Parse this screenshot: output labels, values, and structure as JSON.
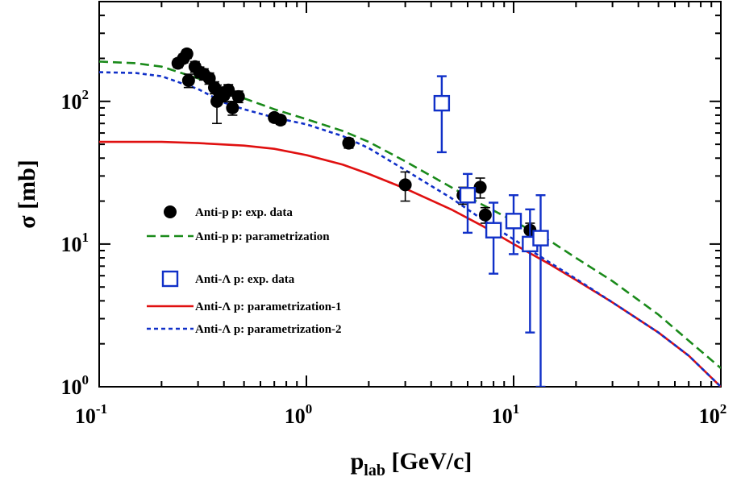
{
  "chart_data": {
    "type": "scatter",
    "xscale": "log",
    "yscale": "log",
    "xlim": [
      0.1,
      100
    ],
    "ylim": [
      1,
      500
    ],
    "xlabel_main": "p",
    "xlabel_sub": "lab",
    "xlabel_unit": " [GeV/c]",
    "ylabel": "σ [mb]",
    "x_ticks": [
      {
        "value": 0.1,
        "base": "10",
        "exp": "-1"
      },
      {
        "value": 1,
        "base": "10",
        "exp": "0"
      },
      {
        "value": 10,
        "base": "10",
        "exp": "1"
      },
      {
        "value": 100,
        "base": "10",
        "exp": "2"
      }
    ],
    "y_ticks": [
      {
        "value": 1,
        "base": "10",
        "exp": "0"
      },
      {
        "value": 10,
        "base": "10",
        "exp": "1"
      },
      {
        "value": 100,
        "base": "10",
        "exp": "2"
      }
    ],
    "legend_placement": "center-left",
    "series": [
      {
        "name": "Anti-p p:  exp. data",
        "kind": "points",
        "marker": "filled-circle",
        "color": "#000000",
        "points": [
          {
            "x": 0.24,
            "y": 185,
            "lo": 172,
            "hi": 198
          },
          {
            "x": 0.255,
            "y": 200,
            "lo": 186,
            "hi": 214
          },
          {
            "x": 0.265,
            "y": 215,
            "lo": 200,
            "hi": 230
          },
          {
            "x": 0.27,
            "y": 140,
            "lo": 125,
            "hi": 155
          },
          {
            "x": 0.29,
            "y": 175,
            "lo": 160,
            "hi": 190
          },
          {
            "x": 0.305,
            "y": 160,
            "lo": 146,
            "hi": 174
          },
          {
            "x": 0.32,
            "y": 155,
            "lo": 141,
            "hi": 169
          },
          {
            "x": 0.34,
            "y": 145,
            "lo": 132,
            "hi": 158
          },
          {
            "x": 0.36,
            "y": 125,
            "lo": 113,
            "hi": 137
          },
          {
            "x": 0.37,
            "y": 100,
            "lo": 70,
            "hi": 130
          },
          {
            "x": 0.38,
            "y": 115,
            "lo": 104,
            "hi": 126
          },
          {
            "x": 0.4,
            "y": 110,
            "lo": 99,
            "hi": 121
          },
          {
            "x": 0.42,
            "y": 120,
            "lo": 109,
            "hi": 131
          },
          {
            "x": 0.44,
            "y": 90,
            "lo": 80,
            "hi": 100
          },
          {
            "x": 0.47,
            "y": 108,
            "lo": 98,
            "hi": 118
          },
          {
            "x": 0.7,
            "y": 77,
            "lo": 72,
            "hi": 82
          },
          {
            "x": 0.75,
            "y": 74,
            "lo": 69,
            "hi": 79
          },
          {
            "x": 1.6,
            "y": 51,
            "lo": 47,
            "hi": 55
          },
          {
            "x": 3.0,
            "y": 26,
            "lo": 20,
            "hi": 32
          },
          {
            "x": 5.7,
            "y": 22,
            "lo": 19,
            "hi": 25
          },
          {
            "x": 6.9,
            "y": 25,
            "lo": 21,
            "hi": 29
          },
          {
            "x": 7.3,
            "y": 16,
            "lo": 14,
            "hi": 18
          },
          {
            "x": 12.0,
            "y": 12.5,
            "lo": 11,
            "hi": 14
          }
        ]
      },
      {
        "name": "Anti-p p:  parametrization",
        "kind": "line",
        "dash": "long",
        "color": "#1a8a1a",
        "points": [
          [
            0.1,
            190
          ],
          [
            0.15,
            185
          ],
          [
            0.2,
            175
          ],
          [
            0.3,
            145
          ],
          [
            0.5,
            105
          ],
          [
            0.7,
            88
          ],
          [
            1,
            75
          ],
          [
            1.5,
            62
          ],
          [
            2,
            52
          ],
          [
            3,
            38
          ],
          [
            5,
            25
          ],
          [
            7,
            19
          ],
          [
            10,
            14.5
          ],
          [
            15,
            10.5
          ],
          [
            20,
            8
          ],
          [
            30,
            5.5
          ],
          [
            50,
            3.2
          ],
          [
            70,
            2.1
          ],
          [
            100,
            1.35
          ]
        ]
      },
      {
        "name": "Anti-Λ p: exp. data",
        "kind": "points",
        "marker": "open-square",
        "color": "#1030c8",
        "points": [
          {
            "x": 4.5,
            "y": 97,
            "lo": 44,
            "hi": 150
          },
          {
            "x": 6.0,
            "y": 22,
            "lo": 12,
            "hi": 31
          },
          {
            "x": 8.0,
            "y": 12.5,
            "lo": 6.2,
            "hi": 19.5
          },
          {
            "x": 10.0,
            "y": 14.5,
            "lo": 8.5,
            "hi": 22
          },
          {
            "x": 12.0,
            "y": 10,
            "lo": 2.4,
            "hi": 17.5
          },
          {
            "x": 13.5,
            "y": 11,
            "lo": 1.0,
            "hi": 22
          }
        ]
      },
      {
        "name": "Anti-Λ p:  parametrization-1",
        "kind": "line",
        "dash": "solid",
        "color": "#e01010",
        "points": [
          [
            0.1,
            52
          ],
          [
            0.2,
            52
          ],
          [
            0.3,
            51
          ],
          [
            0.5,
            49
          ],
          [
            0.7,
            46.5
          ],
          [
            1,
            42
          ],
          [
            1.5,
            36
          ],
          [
            2,
            31
          ],
          [
            3,
            24.5
          ],
          [
            5,
            17.5
          ],
          [
            7,
            13.5
          ],
          [
            10,
            10
          ],
          [
            15,
            7.2
          ],
          [
            20,
            5.6
          ],
          [
            30,
            3.9
          ],
          [
            50,
            2.4
          ],
          [
            70,
            1.65
          ],
          [
            100,
            1.0
          ]
        ]
      },
      {
        "name": "Anti-Λ p:  parametrization-2",
        "kind": "line",
        "dash": "short",
        "color": "#1030c8",
        "points": [
          [
            0.1,
            160
          ],
          [
            0.15,
            158
          ],
          [
            0.2,
            150
          ],
          [
            0.3,
            122
          ],
          [
            0.4,
            98
          ],
          [
            0.5,
            88
          ],
          [
            0.7,
            77
          ],
          [
            1,
            69
          ],
          [
            1.5,
            57
          ],
          [
            2,
            47
          ],
          [
            3,
            33
          ],
          [
            5,
            21
          ],
          [
            7,
            15
          ],
          [
            10,
            10.8
          ],
          [
            15,
            7.4
          ],
          [
            20,
            5.7
          ],
          [
            30,
            3.9
          ],
          [
            50,
            2.4
          ],
          [
            70,
            1.65
          ],
          [
            100,
            1.0
          ]
        ]
      }
    ]
  }
}
